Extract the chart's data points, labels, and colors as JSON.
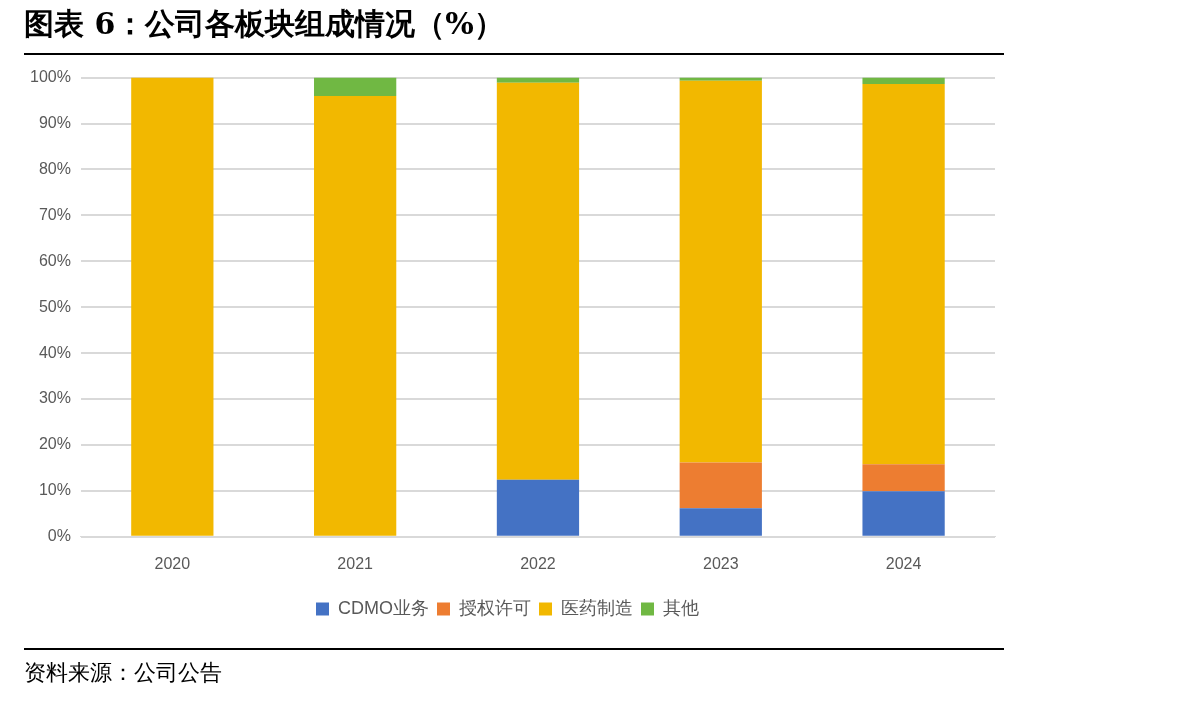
{
  "chart_data": {
    "type": "bar",
    "title": "图表 6：公司各板块组成情况（%）",
    "stacked": true,
    "categories": [
      "2020",
      "2021",
      "2022",
      "2023",
      "2024"
    ],
    "series": [
      {
        "name": "CDMO业务",
        "color": "#4472c4",
        "values": [
          0,
          0,
          12.4,
          6.2,
          9.9
        ]
      },
      {
        "name": "授权许可",
        "color": "#ed7d31",
        "values": [
          0,
          0,
          0,
          10,
          5.9
        ]
      },
      {
        "name": "医药制造",
        "color": "#f2b800",
        "values": [
          100,
          96,
          86.5,
          83.1,
          82.8
        ]
      },
      {
        "name": "其他",
        "color": "#70b843",
        "values": [
          0,
          4,
          1.1,
          0.7,
          1.4
        ]
      }
    ],
    "ylim": [
      0,
      100
    ],
    "yticks": [
      {
        "value": 0,
        "label": "0%"
      },
      {
        "value": 10,
        "label": "10%"
      },
      {
        "value": 20,
        "label": "20%"
      },
      {
        "value": 30,
        "label": "30%"
      },
      {
        "value": 40,
        "label": "40%"
      },
      {
        "value": 50,
        "label": "50%"
      },
      {
        "value": 60,
        "label": "60%"
      },
      {
        "value": 70,
        "label": "70%"
      },
      {
        "value": 80,
        "label": "80%"
      },
      {
        "value": 90,
        "label": "90%"
      },
      {
        "value": 100,
        "label": "100%"
      }
    ],
    "grid": "y",
    "legend": "bottom",
    "annotations": [
      "资料来源：公司公告"
    ]
  }
}
